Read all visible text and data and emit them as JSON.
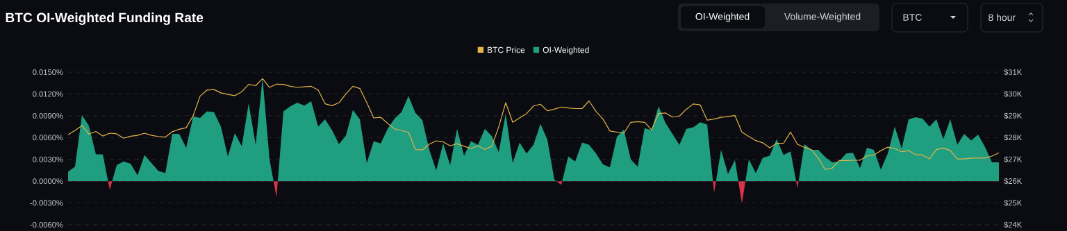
{
  "chart_data": {
    "type": "area",
    "title": "BTC OI-Weighted Funding Rate",
    "annotations": [
      "OI-Weighted",
      "Volume-Weighted",
      "BTC",
      "8 hour"
    ],
    "categories": [
      null,
      null,
      null,
      null,
      null,
      null,
      null,
      null,
      null,
      null,
      null,
      null,
      null,
      null,
      null,
      null,
      null,
      null,
      null,
      null,
      null,
      null,
      null,
      null,
      null,
      null,
      null,
      null,
      null,
      null,
      null,
      null,
      null,
      null,
      null,
      null,
      null,
      null,
      null,
      null,
      null,
      null,
      null,
      null,
      null,
      null,
      null,
      null,
      null,
      null,
      null,
      null,
      null,
      null,
      null,
      null,
      null,
      null,
      null,
      null,
      null,
      null,
      null,
      null,
      null,
      null,
      null,
      null,
      null,
      null,
      null,
      null,
      null,
      null,
      null,
      null,
      null,
      null,
      null,
      null,
      null,
      null,
      null,
      null,
      null,
      null,
      null,
      null,
      null,
      null,
      null,
      null,
      null,
      null,
      null,
      null,
      null,
      null,
      null,
      null,
      null,
      null,
      null,
      null,
      null,
      null,
      null,
      null,
      null,
      null,
      null,
      null,
      null,
      null,
      null,
      null,
      null,
      null,
      null,
      null,
      null,
      null,
      null,
      null,
      null,
      null,
      null,
      null,
      null,
      null,
      null,
      null,
      null,
      null,
      null
    ],
    "series": [
      {
        "name": "BTC Price",
        "type": "line",
        "axis": "y2",
        "color": "#e3b449",
        "values": [
          28130,
          28330,
          28550,
          28160,
          28280,
          28070,
          28200,
          28170,
          27970,
          28060,
          28100,
          28200,
          28100,
          28050,
          28020,
          28270,
          28380,
          28450,
          29000,
          29900,
          30180,
          30200,
          30050,
          29980,
          29920,
          30100,
          30440,
          30380,
          30700,
          30300,
          30450,
          30440,
          30350,
          30300,
          30330,
          30350,
          30180,
          29550,
          29460,
          29600,
          30000,
          30350,
          30250,
          29600,
          28900,
          28930,
          28650,
          28400,
          28320,
          28240,
          27450,
          27430,
          27700,
          27850,
          27800,
          27620,
          27720,
          27600,
          27500,
          27620,
          27450,
          27600,
          28500,
          29600,
          28700,
          28900,
          29100,
          29450,
          29530,
          29230,
          29300,
          29400,
          29360,
          29330,
          29330,
          29680,
          29200,
          28850,
          28300,
          28250,
          28200,
          28700,
          28730,
          28700,
          28350,
          29100,
          29130,
          28940,
          28980,
          29300,
          29540,
          29500,
          28800,
          28850,
          28930,
          28970,
          29010,
          28250,
          28050,
          27860,
          27760,
          27530,
          27730,
          27740,
          28250,
          27690,
          27550,
          27450,
          27050,
          26530,
          26600,
          26950,
          26950,
          26960,
          26960,
          27150,
          27200,
          27400,
          27560,
          27500,
          27350,
          27400,
          27220,
          27200,
          27020,
          27450,
          27520,
          27400,
          27020,
          27020,
          27060,
          27060,
          27060,
          27150,
          27300
        ]
      },
      {
        "name": "OI-Weighted",
        "color": "#1f9e80",
        "values": [
          0.0013,
          0.002,
          0.0091,
          0.0076,
          0.0037,
          0.0037,
          -0.0012,
          0.0022,
          0.0027,
          0.0024,
          0.0008,
          0.0036,
          0.0025,
          0.0014,
          0.0011,
          0.0065,
          0.0065,
          0.0046,
          0.0089,
          0.0087,
          0.0096,
          0.0095,
          0.0075,
          0.0034,
          0.0066,
          0.0048,
          0.0107,
          0.005,
          0.0142,
          0.003,
          -0.0022,
          0.0096,
          0.0103,
          0.0108,
          0.0104,
          0.011,
          0.0075,
          0.0085,
          0.007,
          0.0051,
          0.0063,
          0.0098,
          0.0085,
          0.0025,
          0.0055,
          0.0052,
          0.0072,
          0.0086,
          0.0095,
          0.0117,
          0.0094,
          0.0084,
          0.0043,
          0.0015,
          0.0052,
          0.0022,
          0.0072,
          0.0035,
          0.0055,
          0.005,
          0.0072,
          0.0062,
          0.004,
          0.0093,
          0.0025,
          0.0053,
          0.0038,
          0.005,
          0.0079,
          0.0057,
          0.0002,
          -0.0005,
          0.0034,
          0.0027,
          0.0053,
          0.005,
          0.0038,
          0.0023,
          0.0019,
          0.0061,
          0.0071,
          0.003,
          0.002,
          0.0073,
          0.007,
          0.0103,
          0.008,
          0.0065,
          0.005,
          0.0072,
          0.0074,
          0.0081,
          0.0078,
          -0.0016,
          0.0043,
          0.001,
          0.0029,
          -0.0031,
          0.003,
          0.0011,
          0.0032,
          0.0035,
          0.0058,
          0.0036,
          0.0041,
          -0.001,
          0.0051,
          0.0043,
          0.0043,
          0.0033,
          0.0026,
          0.0027,
          0.0038,
          0.0039,
          0.0018,
          0.0046,
          0.0043,
          0.0016,
          0.0038,
          0.0075,
          0.0045,
          0.0085,
          0.0088,
          0.0086,
          0.0075,
          0.0085,
          0.0058,
          0.0085,
          0.005,
          0.0065,
          0.0056,
          0.0064,
          0.0047,
          0.0026,
          0.0026
        ],
        "colors": [
          "#1f9e80",
          "#1f9e80",
          "#1f9e80",
          "#1f9e80",
          "#1f9e80",
          "#1f9e80",
          "#d63447",
          "#1f9e80",
          "#1f9e80",
          "#1f9e80",
          "#1f9e80",
          "#1f9e80",
          "#1f9e80",
          "#1f9e80",
          "#1f9e80",
          "#1f9e80",
          "#1f9e80",
          "#1f9e80",
          "#1f9e80",
          "#1f9e80",
          "#1f9e80",
          "#1f9e80",
          "#1f9e80",
          "#1f9e80",
          "#1f9e80",
          "#1f9e80",
          "#1f9e80",
          "#1f9e80",
          "#1f9e80",
          "#1f9e80",
          "#d63447",
          "#1f9e80",
          "#1f9e80",
          "#1f9e80",
          "#1f9e80",
          "#1f9e80",
          "#1f9e80",
          "#1f9e80",
          "#1f9e80",
          "#1f9e80",
          "#1f9e80",
          "#1f9e80",
          "#1f9e80",
          "#1f9e80",
          "#1f9e80",
          "#1f9e80",
          "#1f9e80",
          "#1f9e80",
          "#1f9e80",
          "#1f9e80",
          "#1f9e80",
          "#1f9e80",
          "#1f9e80",
          "#1f9e80",
          "#1f9e80",
          "#1f9e80",
          "#1f9e80",
          "#1f9e80",
          "#1f9e80",
          "#1f9e80",
          "#1f9e80",
          "#1f9e80",
          "#1f9e80",
          "#1f9e80",
          "#1f9e80",
          "#1f9e80",
          "#1f9e80",
          "#1f9e80",
          "#1f9e80",
          "#1f9e80",
          "#1f9e80",
          "#d63447",
          "#1f9e80",
          "#1f9e80",
          "#1f9e80",
          "#1f9e80",
          "#1f9e80",
          "#1f9e80",
          "#1f9e80",
          "#1f9e80",
          "#1f9e80",
          "#1f9e80",
          "#1f9e80",
          "#1f9e80",
          "#1f9e80",
          "#1f9e80",
          "#1f9e80",
          "#1f9e80",
          "#1f9e80",
          "#1f9e80",
          "#1f9e80",
          "#1f9e80",
          "#1f9e80",
          "#d63447",
          "#1f9e80",
          "#1f9e80",
          "#1f9e80",
          "#d63447",
          "#1f9e80",
          "#1f9e80",
          "#1f9e80",
          "#1f9e80",
          "#1f9e80",
          "#1f9e80",
          "#1f9e80",
          "#d63447",
          "#1f9e80",
          "#1f9e80",
          "#1f9e80",
          "#1f9e80",
          "#1f9e80",
          "#1f9e80",
          "#1f9e80",
          "#1f9e80",
          "#1f9e80",
          "#1f9e80",
          "#1f9e80",
          "#1f9e80",
          "#1f9e80",
          "#1f9e80",
          "#1f9e80",
          "#1f9e80",
          "#1f9e80",
          "#1f9e80",
          "#1f9e80",
          "#1f9e80",
          "#1f9e80",
          "#1f9e80",
          "#1f9e80",
          "#1f9e80",
          "#1f9e80",
          "#1f9e80",
          "#1f9e80",
          "#1f9e80",
          "#1f9e80"
        ]
      }
    ],
    "ylim": [
      -0.006,
      0.015
    ],
    "yticks": [
      {
        "value": -0.006,
        "label": "-0.0060%"
      },
      {
        "value": -0.003,
        "label": "-0.0030%"
      },
      {
        "value": 0,
        "label": "0.0000%"
      },
      {
        "value": 0.003,
        "label": "0.0030%"
      },
      {
        "value": 0.006,
        "label": "0.0060%"
      },
      {
        "value": 0.009,
        "label": "0.0090%"
      },
      {
        "value": 0.012,
        "label": "0.0120%"
      },
      {
        "value": 0.015,
        "label": "0.0150%"
      }
    ],
    "y2lim": [
      24000,
      31000
    ],
    "y2ticks": [
      {
        "value": 24000,
        "label": "$24K"
      },
      {
        "value": 25000,
        "label": "$25K"
      },
      {
        "value": 26000,
        "label": "$26K"
      },
      {
        "value": 27000,
        "label": "$27K"
      },
      {
        "value": 28000,
        "label": "$28K"
      },
      {
        "value": 29000,
        "label": "$29K"
      },
      {
        "value": 30000,
        "label": "$30K"
      },
      {
        "value": 31000,
        "label": "$31K"
      }
    ],
    "grid": "y",
    "legend": "top"
  }
}
